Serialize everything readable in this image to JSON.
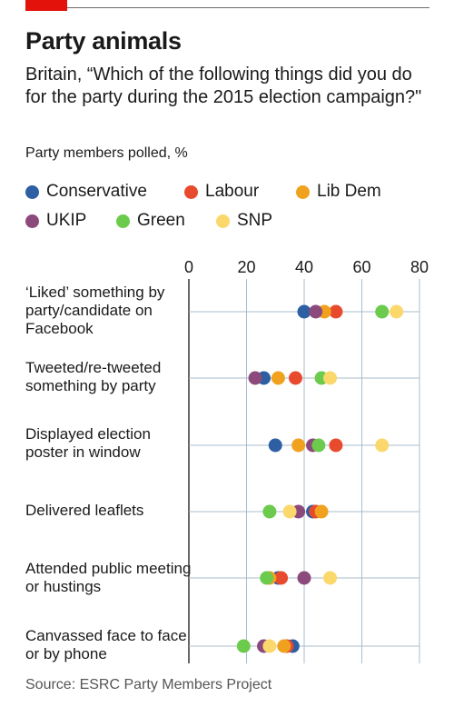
{
  "header": {
    "title": "Party animals",
    "subtitle": "Britain, “Which of the following things did you do for the party during the 2015 election campaign?\"",
    "units": "Party members polled, %"
  },
  "source": "Source: ESRC Party Members Project",
  "colors": {
    "brand_red": "#e3120b",
    "Conservative": "#2e5fa3",
    "Labour": "#e84a2e",
    "Lib Dem": "#f0a21f",
    "UKIP": "#8c4a7c",
    "Green": "#6ccb4c",
    "SNP": "#fbd86b",
    "grid": "#a9bccd",
    "axis": "#333333"
  },
  "chart_data": {
    "type": "scatter",
    "title": "Party animals",
    "subtitle": "Britain, “Which of the following things did you do for the party during the 2015 election campaign?\"",
    "xlabel": "Party members polled, %",
    "xlim": [
      0,
      80
    ],
    "xticks": [
      "0",
      "20",
      "40",
      "60",
      "80"
    ],
    "grid": true,
    "legend_position": "top",
    "categories": [
      "‘Liked’ something by party/candidate on Facebook",
      "Tweeted/re-tweeted something by party",
      "Displayed election poster in window",
      "Delivered leaflets",
      "Attended public meeting or hustings",
      "Canvassed face to face or by phone"
    ],
    "series": [
      {
        "name": "Conservative",
        "values": [
          40,
          26,
          30,
          43,
          31,
          36
        ]
      },
      {
        "name": "Labour",
        "values": [
          51,
          37,
          51,
          44,
          32,
          34
        ]
      },
      {
        "name": "Lib Dem",
        "values": [
          47,
          31,
          38,
          46,
          28,
          33
        ]
      },
      {
        "name": "UKIP",
        "values": [
          44,
          23,
          43,
          38,
          40,
          26
        ]
      },
      {
        "name": "Green",
        "values": [
          67,
          46,
          45,
          28,
          27,
          19
        ]
      },
      {
        "name": "SNP",
        "values": [
          72,
          49,
          67,
          35,
          49,
          28
        ]
      }
    ]
  }
}
